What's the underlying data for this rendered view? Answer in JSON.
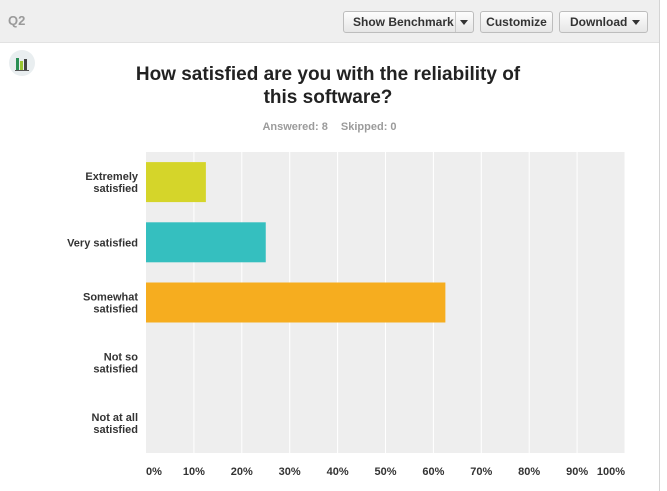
{
  "question": {
    "label": "Q2"
  },
  "toolbar": {
    "show_benchmark_label": "Show Benchmark",
    "customize_label": "Customize",
    "download_label": "Download"
  },
  "header": {
    "title_line1": "How satisfied are you with the reliability of",
    "title_line2": "this software?",
    "answered": "Answered: 8",
    "skipped": "Skipped: 0"
  },
  "icons": {
    "chart": "bar-chart-icon",
    "dropdown": "chevron-down-icon"
  },
  "colors": {
    "plot_background": "#eeeeee",
    "grid": "#ffffff"
  },
  "chart_data": {
    "type": "bar",
    "orientation": "horizontal",
    "title": "How satisfied are you with the reliability of this software?",
    "categories": [
      [
        "Extremely",
        "satisfied"
      ],
      [
        "Very satisfied"
      ],
      [
        "Somewhat",
        "satisfied"
      ],
      [
        "Not so",
        "satisfied"
      ],
      [
        "Not at all",
        "satisfied"
      ]
    ],
    "values": [
      12.5,
      25,
      62.5,
      0,
      0
    ],
    "colors": [
      "#d5d52a",
      "#35bfbf",
      "#f6ad1f",
      "#888888",
      "#888888"
    ],
    "xlim": [
      0,
      100
    ],
    "xticks": [
      "0%",
      "10%",
      "20%",
      "30%",
      "40%",
      "50%",
      "60%",
      "70%",
      "80%",
      "90%",
      "100%"
    ],
    "grid": true,
    "xlabel": "",
    "ylabel": ""
  }
}
